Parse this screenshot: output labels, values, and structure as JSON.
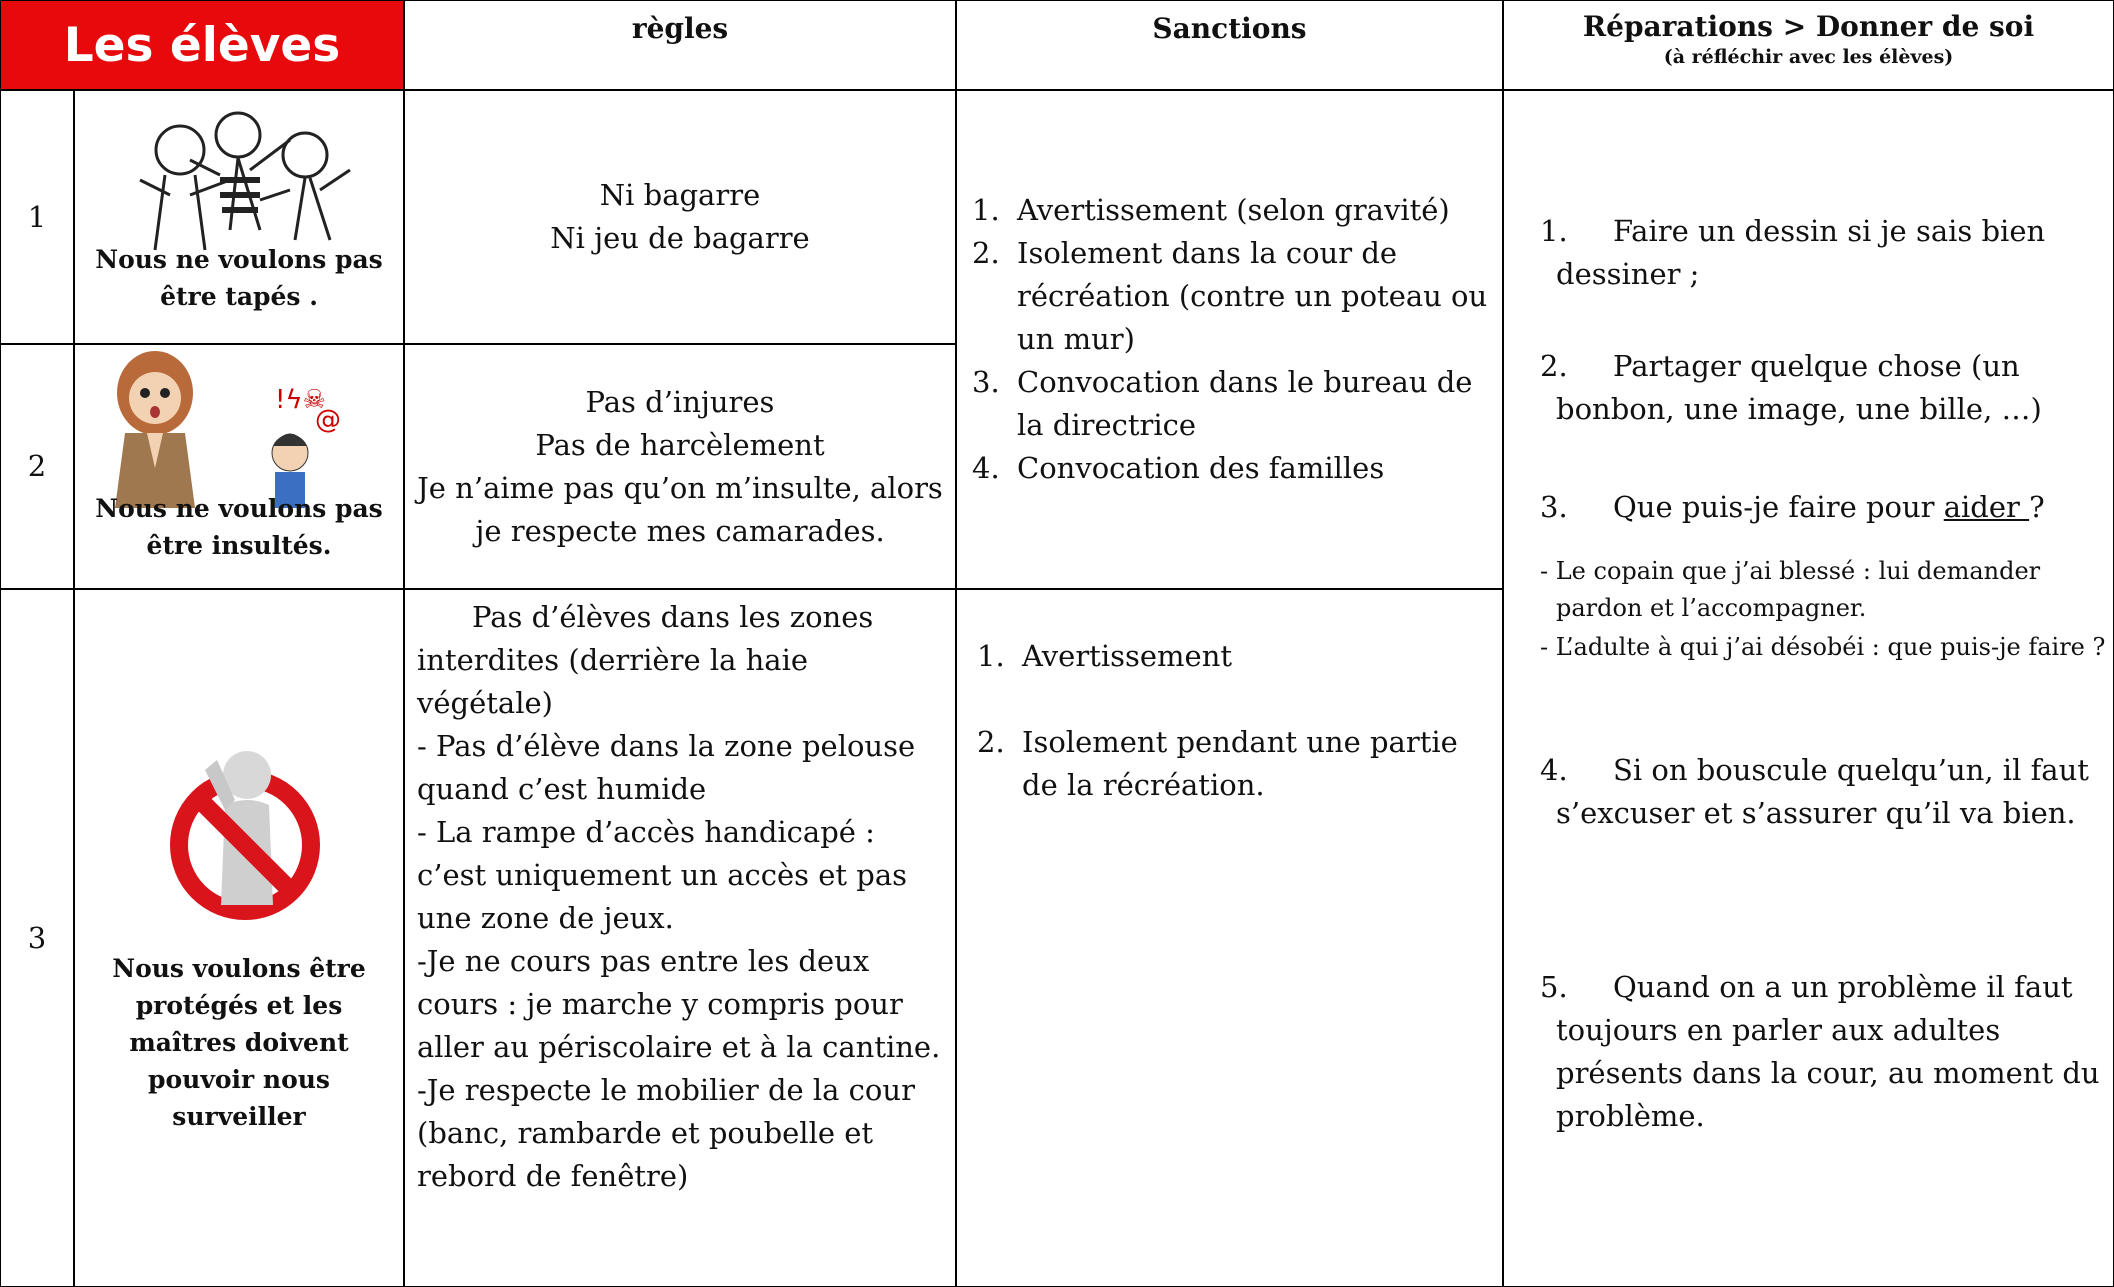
{
  "header": {
    "title": "Les élèves",
    "rules": "règles",
    "sanctions": "Sanctions",
    "repairs": "Réparations > Donner de soi",
    "repairs_note": "(à réfléchir avec les élèves)"
  },
  "rows": [
    {
      "number": "1",
      "caption": "Nous ne voulons pas être tapés .",
      "rules": [
        "Ni bagarre",
        "Ni jeu de bagarre"
      ]
    },
    {
      "number": "2",
      "caption": "Nous ne voulons pas être insultés.",
      "rules": [
        "Pas d’injures",
        "Pas de harcèlement",
        "Je n’aime pas qu’on m’insulte, alors je respecte mes camarades."
      ]
    },
    {
      "number": "3",
      "caption": "Nous voulons être protégés et les maîtres doivent pouvoir nous surveiller",
      "rules": [
        "Pas d’élèves dans les zones  interdites (derrière la haie végétale)",
        "- Pas  d’élève dans la zone pelouse   quand c’est humide",
        "- La rampe d’accès handicapé : c’est uniquement un accès et pas une zone de jeux.",
        "-Je ne cours pas entre les deux cours : je marche  y compris pour aller au périscolaire et à la cantine.",
        "-Je respecte le mobilier de la cour (banc, rambarde et poubelle et rebord de fenêtre)"
      ]
    }
  ],
  "sanctions": [
    [
      {
        "n": "1.",
        "text": "Avertissement (selon gravité)"
      },
      {
        "n": "2.",
        "text": "Isolement dans la cour de récréation (contre un poteau ou un mur)"
      },
      {
        "n": "3.",
        "text": "Convocation dans le bureau de la directrice"
      },
      {
        "n": "4.",
        "text": "Convocation des familles"
      }
    ],
    [
      {
        "n": "1.",
        "text": "Avertissement"
      },
      {
        "n": "2.",
        "text": "Isolement pendant une partie de la récréation."
      }
    ]
  ],
  "repairs": {
    "items": [
      {
        "n": "1.",
        "text": "Faire un dessin si je sais bien dessiner ;"
      },
      {
        "n": "2.",
        "text": "Partager quelque chose (un bonbon, une image, une bille, …)"
      },
      {
        "n": "3.",
        "text": "Que puis-je faire pour ",
        "underlined": "aider ",
        "after": "?"
      },
      {
        "n": "4.",
        "text": "Si on bouscule quelqu’un, il faut s’excuser et s’assurer qu’il va bien."
      },
      {
        "n": "5.",
        "text": "Quand on a un problème il faut toujours en parler aux adultes présents dans la cour, au moment du problème."
      }
    ],
    "notes": [
      "- Le copain que j’ai blessé : lui demander pardon et l’accompagner.",
      "- L’adulte à qui j’ai désobéi : que puis-je faire ?"
    ]
  }
}
